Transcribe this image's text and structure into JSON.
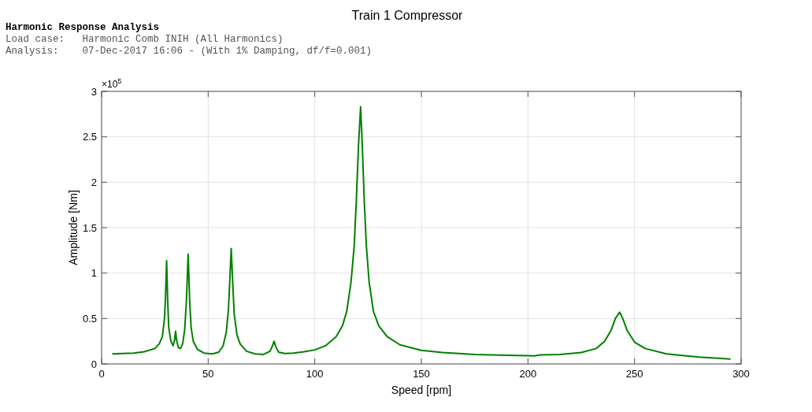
{
  "chart_data": {
    "type": "line",
    "title": "Train 1 Compressor",
    "xlabel": "Speed [rpm]",
    "ylabel": "Amplitude [Nm]",
    "annotations": [
      "Harmonic Response Analysis",
      "Load case:   Harmonic Comb INIH (All Harmonics)",
      "Analysis:    07-Dec-2017 16:06 - (With 1% Damping, df/f=0.001)",
      "×10$^{5}$"
    ],
    "xlim": [
      0,
      300
    ],
    "xticks": [
      0,
      50,
      100,
      150,
      200,
      250,
      300
    ],
    "ylim": [
      0,
      3
    ],
    "yticks": [
      0,
      0.5,
      1,
      1.5,
      2,
      2.5,
      3
    ],
    "grid": true,
    "marker": "none",
    "line_style": "solid",
    "series": [
      {
        "color": "#008000",
        "x": [
          5,
          10,
          15,
          20,
          25,
          27,
          28.5,
          29.5,
          30,
          30.5,
          31,
          31.5,
          32.5,
          33.5,
          34.2,
          34.7,
          35.2,
          36,
          37,
          38,
          39,
          39.8,
          40.6,
          41.3,
          42,
          43,
          45,
          48,
          52,
          55,
          57,
          58.5,
          59.5,
          60.2,
          60.8,
          61.4,
          62.2,
          63.5,
          65,
          68,
          72,
          76,
          79,
          80.2,
          80.9,
          81.7,
          83,
          86,
          90,
          95,
          100,
          105,
          110,
          113,
          115,
          117,
          118.5,
          119.5,
          120.5,
          121.5,
          122.3,
          123.2,
          124.2,
          125.5,
          127.5,
          130,
          134,
          140,
          150,
          160,
          175,
          190,
          200,
          203,
          206,
          215,
          225,
          232,
          236,
          239,
          241,
          243,
          244.5,
          246.5,
          250,
          255,
          265,
          280,
          295
        ],
        "values": [
          0.11,
          0.115,
          0.12,
          0.135,
          0.17,
          0.22,
          0.3,
          0.5,
          0.75,
          1.136,
          0.7,
          0.4,
          0.25,
          0.2,
          0.26,
          0.36,
          0.26,
          0.18,
          0.17,
          0.22,
          0.38,
          0.7,
          1.21,
          0.7,
          0.4,
          0.25,
          0.16,
          0.12,
          0.11,
          0.13,
          0.2,
          0.35,
          0.6,
          0.95,
          1.27,
          0.95,
          0.55,
          0.32,
          0.22,
          0.14,
          0.11,
          0.105,
          0.14,
          0.2,
          0.25,
          0.19,
          0.13,
          0.115,
          0.12,
          0.135,
          0.155,
          0.2,
          0.3,
          0.42,
          0.58,
          0.9,
          1.3,
          1.8,
          2.4,
          2.83,
          2.4,
          1.8,
          1.3,
          0.9,
          0.58,
          0.42,
          0.3,
          0.21,
          0.15,
          0.125,
          0.105,
          0.095,
          0.09,
          0.088,
          0.1,
          0.105,
          0.125,
          0.17,
          0.25,
          0.37,
          0.5,
          0.57,
          0.5,
          0.37,
          0.24,
          0.17,
          0.11,
          0.075,
          0.055
        ]
      }
    ]
  }
}
